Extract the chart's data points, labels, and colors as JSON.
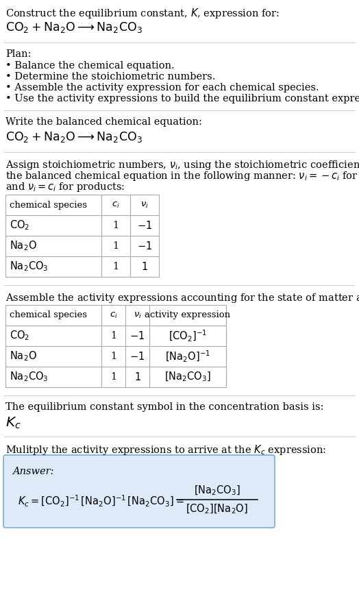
{
  "title_line1": "Construct the equilibrium constant, $K$, expression for:",
  "title_line2": "$\\mathrm{CO_2 + Na_2O \\longrightarrow Na_2CO_3}$",
  "plan_header": "Plan:",
  "plan_steps": [
    "• Balance the chemical equation.",
    "• Determine the stoichiometric numbers.",
    "• Assemble the activity expression for each chemical species.",
    "• Use the activity expressions to build the equilibrium constant expression."
  ],
  "balanced_eq_header": "Write the balanced chemical equation:",
  "balanced_eq": "$\\mathrm{CO_2 + Na_2O \\longrightarrow Na_2CO_3}$",
  "stoich_intro_lines": [
    "Assign stoichiometric numbers, $\\nu_i$, using the stoichiometric coefficients, $c_i$, from",
    "the balanced chemical equation in the following manner: $\\nu_i = -c_i$ for reactants",
    "and $\\nu_i = c_i$ for products:"
  ],
  "table1_headers": [
    "chemical species",
    "$c_i$",
    "$\\nu_i$"
  ],
  "table1_rows": [
    [
      "$\\mathrm{CO_2}$",
      "1",
      "$-1$"
    ],
    [
      "$\\mathrm{Na_2O}$",
      "1",
      "$-1$"
    ],
    [
      "$\\mathrm{Na_2CO_3}$",
      "1",
      "$1$"
    ]
  ],
  "activity_intro": "Assemble the activity expressions accounting for the state of matter and $\\nu_i$:",
  "table2_headers": [
    "chemical species",
    "$c_i$",
    "$\\nu_i$",
    "activity expression"
  ],
  "table2_rows": [
    [
      "$\\mathrm{CO_2}$",
      "1",
      "$-1$",
      "$[\\mathrm{CO_2}]^{-1}$"
    ],
    [
      "$\\mathrm{Na_2O}$",
      "1",
      "$-1$",
      "$[\\mathrm{Na_2O}]^{-1}$"
    ],
    [
      "$\\mathrm{Na_2CO_3}$",
      "1",
      "$1$",
      "$[\\mathrm{Na_2CO_3}]$"
    ]
  ],
  "kc_intro": "The equilibrium constant symbol in the concentration basis is:",
  "kc_symbol": "$K_c$",
  "multiply_intro": "Mulitply the activity expressions to arrive at the $K_c$ expression:",
  "answer_label": "Answer:",
  "answer_lhs": "$K_c = [\\mathrm{CO_2}]^{-1}\\,[\\mathrm{Na_2O}]^{-1}\\,[\\mathrm{Na_2CO_3}] = $",
  "answer_numerator": "$[\\mathrm{Na_2CO_3}]$",
  "answer_denominator": "$[\\mathrm{CO_2}][\\mathrm{Na_2O}]$",
  "answer_box_color": "#ddeaf7",
  "answer_box_border": "#7aadd4",
  "bg_color": "#ffffff",
  "text_color": "#000000",
  "separator_color": "#cccccc",
  "table_border_color": "#aaaaaa",
  "font_size": 10.5,
  "small_font": 9.5
}
